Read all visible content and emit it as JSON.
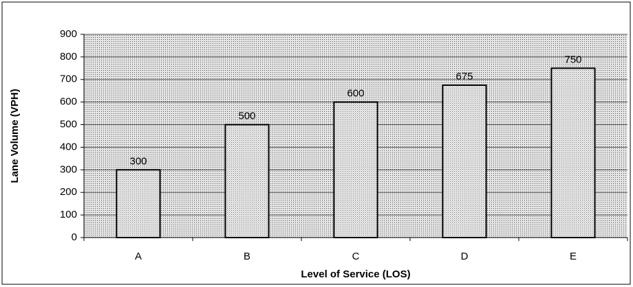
{
  "chart_data": {
    "type": "bar",
    "x_label": "Level of Service (LOS)",
    "y_label": "Lane Volume (VPH)",
    "categories": [
      "A",
      "B",
      "C",
      "D",
      "E"
    ],
    "values": [
      300,
      500,
      600,
      675,
      750
    ],
    "color": "#e6e6e6",
    "ylim": [
      0,
      900
    ],
    "yticks": [
      0,
      100,
      200,
      300,
      400,
      500,
      600,
      700,
      800,
      900
    ],
    "grid": true
  }
}
